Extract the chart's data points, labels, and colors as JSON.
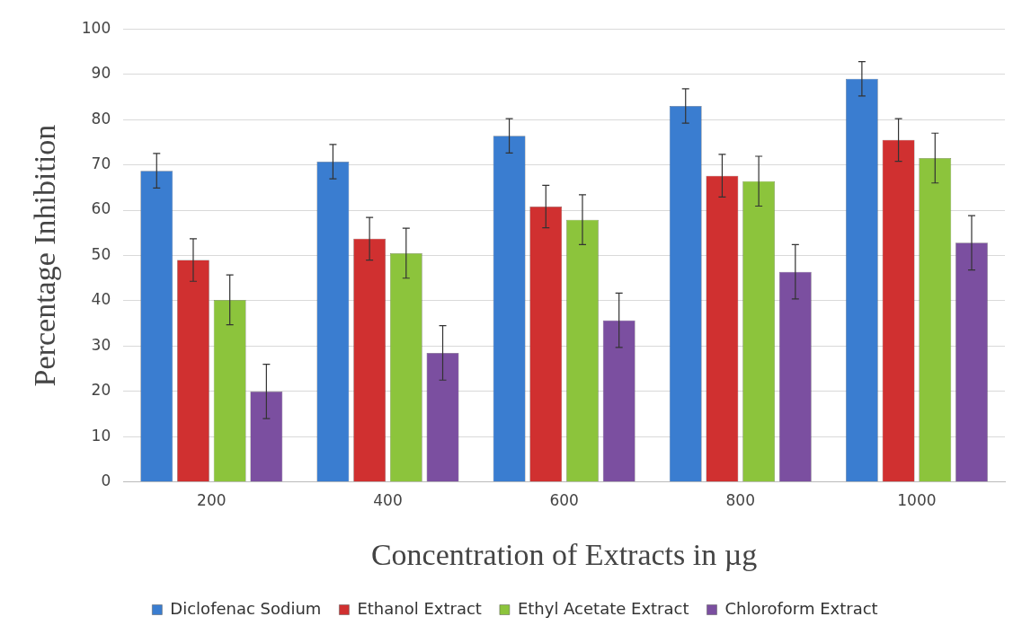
{
  "chart_data": {
    "type": "bar",
    "xlabel": "Concentration of Extracts in µg",
    "ylabel": "Percentage Inhibition",
    "categories": [
      "200",
      "400",
      "600",
      "800",
      "1000"
    ],
    "series": [
      {
        "name": "Diclofenac Sodium",
        "color": "#3a7dd0",
        "values": [
          68.7,
          70.7,
          76.4,
          83,
          89
        ],
        "errors": [
          3.8,
          3.8,
          3.8,
          3.8,
          3.8
        ]
      },
      {
        "name": "Ethanol Extract",
        "color": "#d03030",
        "values": [
          49,
          53.7,
          60.8,
          67.6,
          75.5
        ],
        "errors": [
          4.7,
          4.7,
          4.7,
          4.7,
          4.7
        ]
      },
      {
        "name": "Ethyl Acetate Extract",
        "color": "#8cc43c",
        "values": [
          40.2,
          50.5,
          57.9,
          66.4,
          71.5
        ],
        "errors": [
          5.5,
          5.5,
          5.5,
          5.5,
          5.5
        ]
      },
      {
        "name": "Chloroform Extract",
        "color": "#7b4fa0",
        "values": [
          20,
          28.5,
          35.7,
          46.4,
          52.8
        ],
        "errors": [
          6,
          6,
          6,
          6,
          6
        ]
      }
    ],
    "ylim": [
      0,
      100
    ],
    "yticks": [
      0,
      10,
      20,
      30,
      40,
      50,
      60,
      70,
      80,
      90,
      100
    ],
    "grid": "y",
    "legend": "bottom"
  }
}
